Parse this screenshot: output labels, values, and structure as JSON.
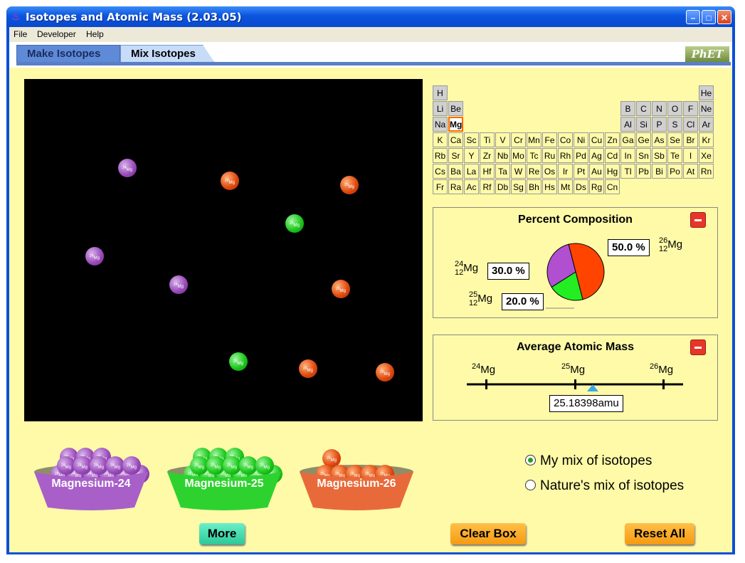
{
  "window": {
    "title": "Isotopes and Atomic Mass (2.03.05)"
  },
  "menu": [
    "File",
    "Developer",
    "Help"
  ],
  "tabs": [
    {
      "label": "Make Isotopes",
      "active": false
    },
    {
      "label": "Mix Isotopes",
      "active": true
    }
  ],
  "logo": "PhET",
  "periodic_table": {
    "selected": "Mg",
    "rows": [
      [
        "H",
        "",
        "",
        "",
        "",
        "",
        "",
        "",
        "",
        "",
        "",
        "",
        "",
        "",
        "",
        "",
        "",
        "He"
      ],
      [
        "Li",
        "Be",
        "",
        "",
        "",
        "",
        "",
        "",
        "",
        "",
        "",
        "",
        "B",
        "C",
        "N",
        "O",
        "F",
        "Ne"
      ],
      [
        "Na",
        "Mg",
        "",
        "",
        "",
        "",
        "",
        "",
        "",
        "",
        "",
        "",
        "Al",
        "Si",
        "P",
        "S",
        "Cl",
        "Ar"
      ],
      [
        "K",
        "Ca",
        "Sc",
        "Ti",
        "V",
        "Cr",
        "Mn",
        "Fe",
        "Co",
        "Ni",
        "Cu",
        "Zn",
        "Ga",
        "Ge",
        "As",
        "Se",
        "Br",
        "Kr"
      ],
      [
        "Rb",
        "Sr",
        "Y",
        "Zr",
        "Nb",
        "Mo",
        "Tc",
        "Ru",
        "Rh",
        "Pd",
        "Ag",
        "Cd",
        "In",
        "Sn",
        "Sb",
        "Te",
        "I",
        "Xe"
      ],
      [
        "Cs",
        "Ba",
        "La",
        "Hf",
        "Ta",
        "W",
        "Re",
        "Os",
        "Ir",
        "Pt",
        "Au",
        "Hg",
        "Tl",
        "Pb",
        "Bi",
        "Po",
        "At",
        "Rn"
      ],
      [
        "Fr",
        "Ra",
        "Ac",
        "Rf",
        "Db",
        "Sg",
        "Bh",
        "Hs",
        "Mt",
        "Ds",
        "Rg",
        "Cn",
        "",
        "",
        "",
        "",
        "",
        ""
      ]
    ]
  },
  "percent_composition": {
    "title": "Percent Composition",
    "slices": [
      {
        "mass": "26",
        "z": "12",
        "symbol": "Mg",
        "percent": "50.0 %",
        "value": 50.0,
        "color": "#ff4400"
      },
      {
        "mass": "25",
        "z": "12",
        "symbol": "Mg",
        "percent": "20.0 %",
        "value": 20.0,
        "color": "#22ee22"
      },
      {
        "mass": "24",
        "z": "12",
        "symbol": "Mg",
        "percent": "30.0 %",
        "value": 30.0,
        "color": "#b050d0"
      }
    ]
  },
  "average_atomic_mass": {
    "title": "Average Atomic Mass",
    "scale_labels": [
      {
        "mass": "24",
        "symbol": "Mg"
      },
      {
        "mass": "25",
        "symbol": "Mg"
      },
      {
        "mass": "26",
        "symbol": "Mg"
      }
    ],
    "value": "25.18398amu"
  },
  "box_atoms": [
    {
      "isotope": "24",
      "symbol": "Mg"
    },
    {
      "isotope": "26",
      "symbol": "Mg"
    },
    {
      "isotope": "26",
      "symbol": "Mg"
    },
    {
      "isotope": "25",
      "symbol": "Mg"
    },
    {
      "isotope": "24",
      "symbol": "Mg"
    },
    {
      "isotope": "24",
      "symbol": "Mg"
    },
    {
      "isotope": "26",
      "symbol": "Mg"
    },
    {
      "isotope": "25",
      "symbol": "Mg"
    },
    {
      "isotope": "26",
      "symbol": "Mg"
    },
    {
      "isotope": "26",
      "symbol": "Mg"
    }
  ],
  "buckets": [
    {
      "label": "Magnesium-24",
      "isotope": "24",
      "symbol": "Mg",
      "color": "#a860c8"
    },
    {
      "label": "Magnesium-25",
      "isotope": "25",
      "symbol": "Mg",
      "color": "#2ed22e"
    },
    {
      "label": "Magnesium-26",
      "isotope": "26",
      "symbol": "Mg",
      "color": "#e86a3a"
    }
  ],
  "buttons": {
    "more": "More",
    "clear": "Clear Box",
    "reset": "Reset All"
  },
  "mix_options": [
    {
      "label": "My mix of isotopes",
      "selected": true
    },
    {
      "label": "Nature's mix of isotopes",
      "selected": false
    }
  ]
}
